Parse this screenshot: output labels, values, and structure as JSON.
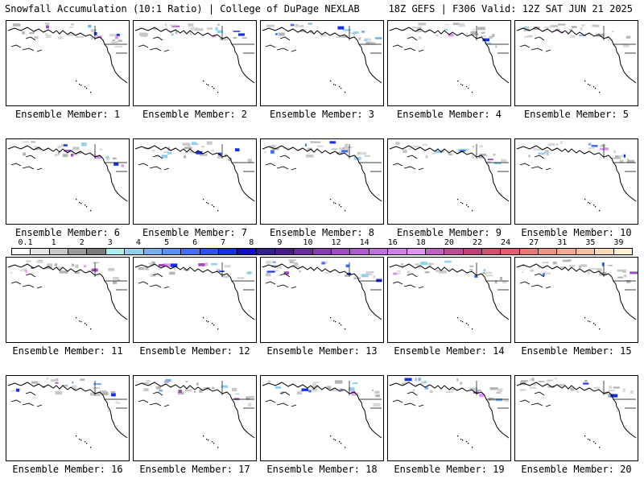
{
  "header": {
    "left_title": "Snowfall Accumulation (10:1 Ratio) | College of DuPage NEXLAB",
    "right_title": "18Z GEFS | F306 Valid: 12Z SAT JUN 21 2025"
  },
  "colorbar": {
    "labels": [
      "0.1",
      "1",
      "2",
      "3",
      "4",
      "5",
      "6",
      "7",
      "8",
      "9",
      "10",
      "12",
      "14",
      "16",
      "18",
      "20",
      "22",
      "24",
      "27",
      "31",
      "35",
      "39"
    ],
    "colors": [
      "#ffffff",
      "#e6e6e6",
      "#c8c8c8",
      "#9a9a9a",
      "#7a7a7a",
      "#a8f0f0",
      "#8ed0f0",
      "#74b0f0",
      "#5a90f0",
      "#4070f0",
      "#2a50f0",
      "#1430e8",
      "#1010c0",
      "#302090",
      "#4a1a8c",
      "#6a2aa0",
      "#8a3ab0",
      "#a04ac0",
      "#b05ad0",
      "#c070e0",
      "#d080e8",
      "#e090f0",
      "#c060c0",
      "#c04a9a",
      "#c0407a",
      "#d05078",
      "#e06070",
      "#e87870",
      "#f09080",
      "#f4a890",
      "#f8c0a0",
      "#fcd8b4",
      "#fff0d0"
    ]
  },
  "members": [
    {
      "caption": "Ensemble Member: 1"
    },
    {
      "caption": "Ensemble Member: 2"
    },
    {
      "caption": "Ensemble Member: 3"
    },
    {
      "caption": "Ensemble Member: 4"
    },
    {
      "caption": "Ensemble Member: 5"
    },
    {
      "caption": "Ensemble Member: 6"
    },
    {
      "caption": "Ensemble Member: 7"
    },
    {
      "caption": "Ensemble Member: 8"
    },
    {
      "caption": "Ensemble Member: 9"
    },
    {
      "caption": "Ensemble Member: 10"
    },
    {
      "caption": "Ensemble Member: 11"
    },
    {
      "caption": "Ensemble Member: 12"
    },
    {
      "caption": "Ensemble Member: 13"
    },
    {
      "caption": "Ensemble Member: 14"
    },
    {
      "caption": "Ensemble Member: 15"
    },
    {
      "caption": "Ensemble Member: 16"
    },
    {
      "caption": "Ensemble Member: 17"
    },
    {
      "caption": "Ensemble Member: 18"
    },
    {
      "caption": "Ensemble Member: 19"
    },
    {
      "caption": "Ensemble Member: 20"
    }
  ]
}
